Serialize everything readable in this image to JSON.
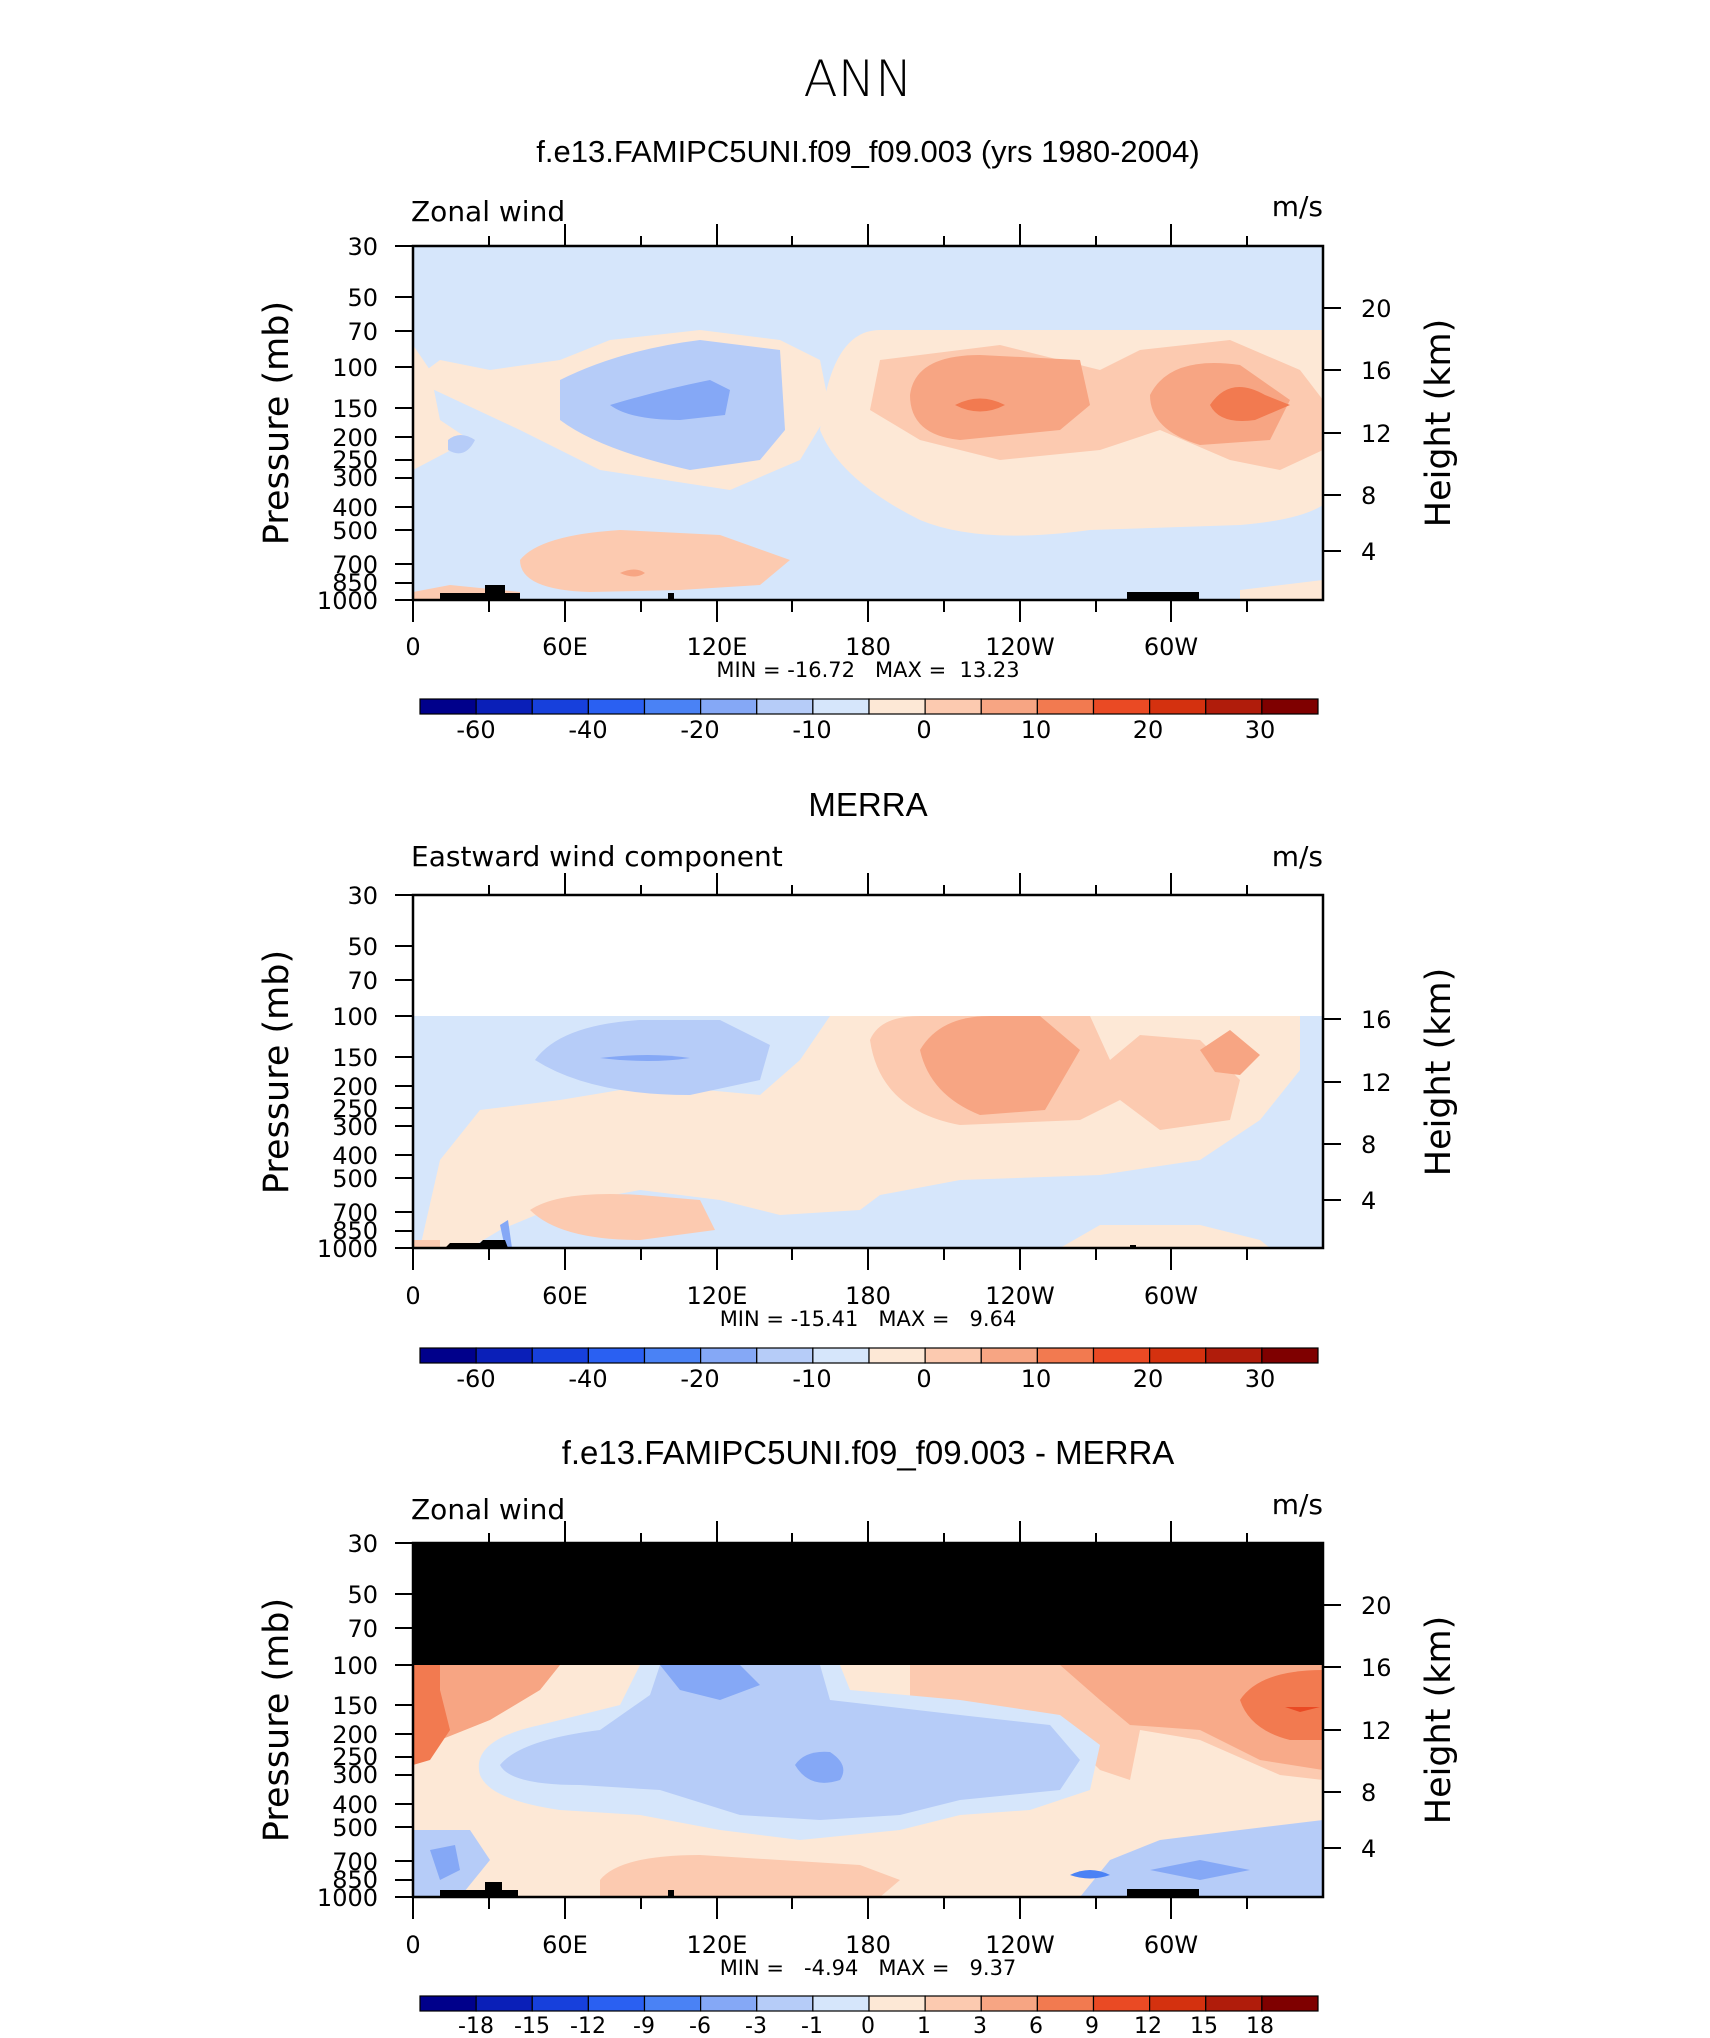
{
  "page_title": "ANN",
  "chart_data": [
    {
      "type": "contour",
      "title": "f.e13.FAMIPC5UNI.f09_f09.003 (yrs 1980-2004)",
      "left_label": "Zonal wind",
      "units": "m/s",
      "ylabel": "Pressure (mb)",
      "y2label": "Height (km)",
      "x_ticks": [
        "0",
        "60E",
        "120E",
        "180",
        "120W",
        "60W"
      ],
      "p_ticks": [
        "30",
        "50",
        "70",
        "100",
        "150",
        "200",
        "250",
        "300",
        "400",
        "500",
        "700",
        "850",
        "1000"
      ],
      "h_ticks": [
        "20",
        "16",
        "12",
        "8",
        "4"
      ],
      "xlim_lon": [
        0,
        360
      ],
      "ylim_mb": [
        1000,
        30
      ],
      "y_scale": "log",
      "min": -16.72,
      "max": 13.23,
      "stats_text": "MIN = -16.72   MAX =  13.23",
      "colorbar": {
        "labels": [
          "-60",
          "-40",
          "-20",
          "-10",
          "0",
          "10",
          "20",
          "30"
        ],
        "colors": [
          "#00008b",
          "#0a1fb8",
          "#1740dc",
          "#2a60f2",
          "#4a82f5",
          "#85a8f6",
          "#b6ccf8",
          "#d6e6fb",
          "#fde8d6",
          "#fccab0",
          "#f7a583",
          "#f27a50",
          "#ea4a24",
          "#d4310f",
          "#b01c0b",
          "#7f0000"
        ]
      }
    },
    {
      "type": "contour",
      "title": "MERRA",
      "left_label": "Eastward wind component",
      "units": "m/s",
      "ylabel": "Pressure (mb)",
      "y2label": "Height (km)",
      "x_ticks": [
        "0",
        "60E",
        "120E",
        "180",
        "120W",
        "60W"
      ],
      "p_ticks": [
        "30",
        "50",
        "70",
        "100",
        "150",
        "200",
        "250",
        "300",
        "400",
        "500",
        "700",
        "850",
        "1000"
      ],
      "h_ticks": [
        "16",
        "12",
        "8",
        "4"
      ],
      "xlim_lon": [
        0,
        360
      ],
      "ylim_mb": [
        1000,
        30
      ],
      "y_scale": "log",
      "min": -15.41,
      "max": 9.64,
      "stats_text": "MIN = -15.41   MAX =   9.64",
      "colorbar": {
        "labels": [
          "-60",
          "-40",
          "-20",
          "-10",
          "0",
          "10",
          "20",
          "30"
        ],
        "colors": [
          "#00008b",
          "#0a1fb8",
          "#1740dc",
          "#2a60f2",
          "#4a82f5",
          "#85a8f6",
          "#b6ccf8",
          "#d6e6fb",
          "#fde8d6",
          "#fccab0",
          "#f7a583",
          "#f27a50",
          "#ea4a24",
          "#d4310f",
          "#b01c0b",
          "#7f0000"
        ]
      }
    },
    {
      "type": "contour",
      "title": "f.e13.FAMIPC5UNI.f09_f09.003 - MERRA",
      "left_label": "Zonal wind",
      "units": "m/s",
      "ylabel": "Pressure (mb)",
      "y2label": "Height (km)",
      "x_ticks": [
        "0",
        "60E",
        "120E",
        "180",
        "120W",
        "60W"
      ],
      "p_ticks": [
        "30",
        "50",
        "70",
        "100",
        "150",
        "200",
        "250",
        "300",
        "400",
        "500",
        "700",
        "850",
        "1000"
      ],
      "h_ticks": [
        "20",
        "16",
        "12",
        "8",
        "4"
      ],
      "xlim_lon": [
        0,
        360
      ],
      "ylim_mb": [
        1000,
        30
      ],
      "y_scale": "log",
      "min": -4.94,
      "max": 9.37,
      "stats_text": "MIN =   -4.94   MAX =   9.37",
      "colorbar": {
        "labels": [
          "-18",
          "-15",
          "-12",
          "-9",
          "-6",
          "-3",
          "-1",
          "0",
          "1",
          "3",
          "6",
          "9",
          "12",
          "15",
          "18"
        ],
        "colors": [
          "#00008b",
          "#0a1fb8",
          "#1740dc",
          "#2a60f2",
          "#4a82f5",
          "#85a8f6",
          "#b6ccf8",
          "#d6e6fb",
          "#fde8d6",
          "#fccab0",
          "#f7a583",
          "#f27a50",
          "#ea4a24",
          "#d4310f",
          "#b01c0b",
          "#7f0000"
        ]
      }
    }
  ]
}
